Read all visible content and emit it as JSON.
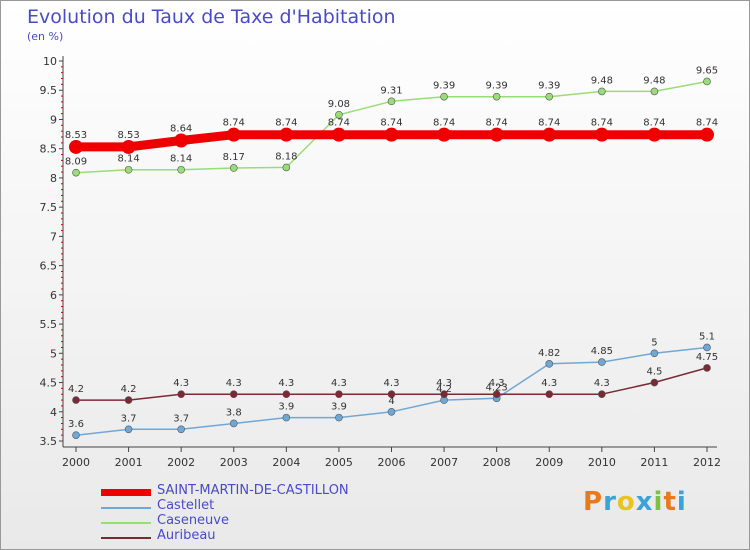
{
  "header": {
    "title": "Evolution du Taux de Taxe d'Habitation",
    "subtitle": "(en %)"
  },
  "logo": {
    "text": "Proxiti",
    "colors": [
      "#e87a1d",
      "#3aa3d8",
      "#e8c41d",
      "#3aa3d8",
      "#7cc242",
      "#e87a1d",
      "#3aa3d8"
    ]
  },
  "chart_data": {
    "type": "line",
    "title": "Evolution du Taux de Taxe d'Habitation",
    "subtitle": "(en %)",
    "xlabel": "",
    "ylabel": "",
    "x": [
      "2000",
      "2001",
      "2002",
      "2003",
      "2004",
      "2005",
      "2006",
      "2007",
      "2008",
      "2009",
      "2010",
      "2011",
      "2012"
    ],
    "ylim": [
      3.5,
      10
    ],
    "yticks": [
      "3.5",
      "4",
      "4.5",
      "5",
      "5.5",
      "6",
      "6.5",
      "7",
      "7.5",
      "8",
      "8.5",
      "9",
      "9.5",
      "10"
    ],
    "grid": false,
    "legend_position": "bottom-left",
    "series": [
      {
        "name": "SAINT-MARTIN-DE-CASTILLON",
        "color": "#ee0000",
        "values": [
          8.53,
          8.53,
          8.64,
          8.74,
          8.74,
          8.74,
          8.74,
          8.74,
          8.74,
          8.74,
          8.74,
          8.74,
          8.74
        ],
        "labels": [
          "8.53",
          "8.53",
          "8.64",
          "8.74",
          "8.74",
          "8.74",
          "8.74",
          "8.74",
          "8.74",
          "8.74",
          "8.74",
          "8.74",
          "8.74"
        ]
      },
      {
        "name": "Castellet",
        "color": "#6fa8d6",
        "values": [
          3.6,
          3.7,
          3.7,
          3.8,
          3.9,
          3.9,
          4.0,
          4.2,
          4.23,
          4.82,
          4.85,
          5.0,
          5.1
        ],
        "labels": [
          "3.6",
          "3.7",
          "3.7",
          "3.8",
          "3.9",
          "3.9",
          "4",
          "4.2",
          "4.23",
          "4.82",
          "4.85",
          "5",
          "5.1"
        ]
      },
      {
        "name": "Caseneuve",
        "color": "#99dd77",
        "values": [
          8.09,
          8.14,
          8.14,
          8.17,
          8.18,
          9.08,
          9.31,
          9.39,
          9.39,
          9.39,
          9.48,
          9.48,
          9.65
        ],
        "labels": [
          "8.09",
          "8.14",
          "8.14",
          "8.17",
          "8.18",
          "9.08",
          "9.31",
          "9.39",
          "9.39",
          "9.39",
          "9.48",
          "9.48",
          "9.65"
        ]
      },
      {
        "name": "Auribeau",
        "color": "#7a2a35",
        "values": [
          4.2,
          4.2,
          4.3,
          4.3,
          4.3,
          4.3,
          4.3,
          4.3,
          4.3,
          4.3,
          4.3,
          4.5,
          4.75
        ],
        "labels": [
          "4.2",
          "4.2",
          "4.3",
          "4.3",
          "4.3",
          "4.3",
          "4.3",
          "4.3",
          "4.3",
          "4.3",
          "4.3",
          "4.5",
          "4.75"
        ]
      }
    ]
  }
}
